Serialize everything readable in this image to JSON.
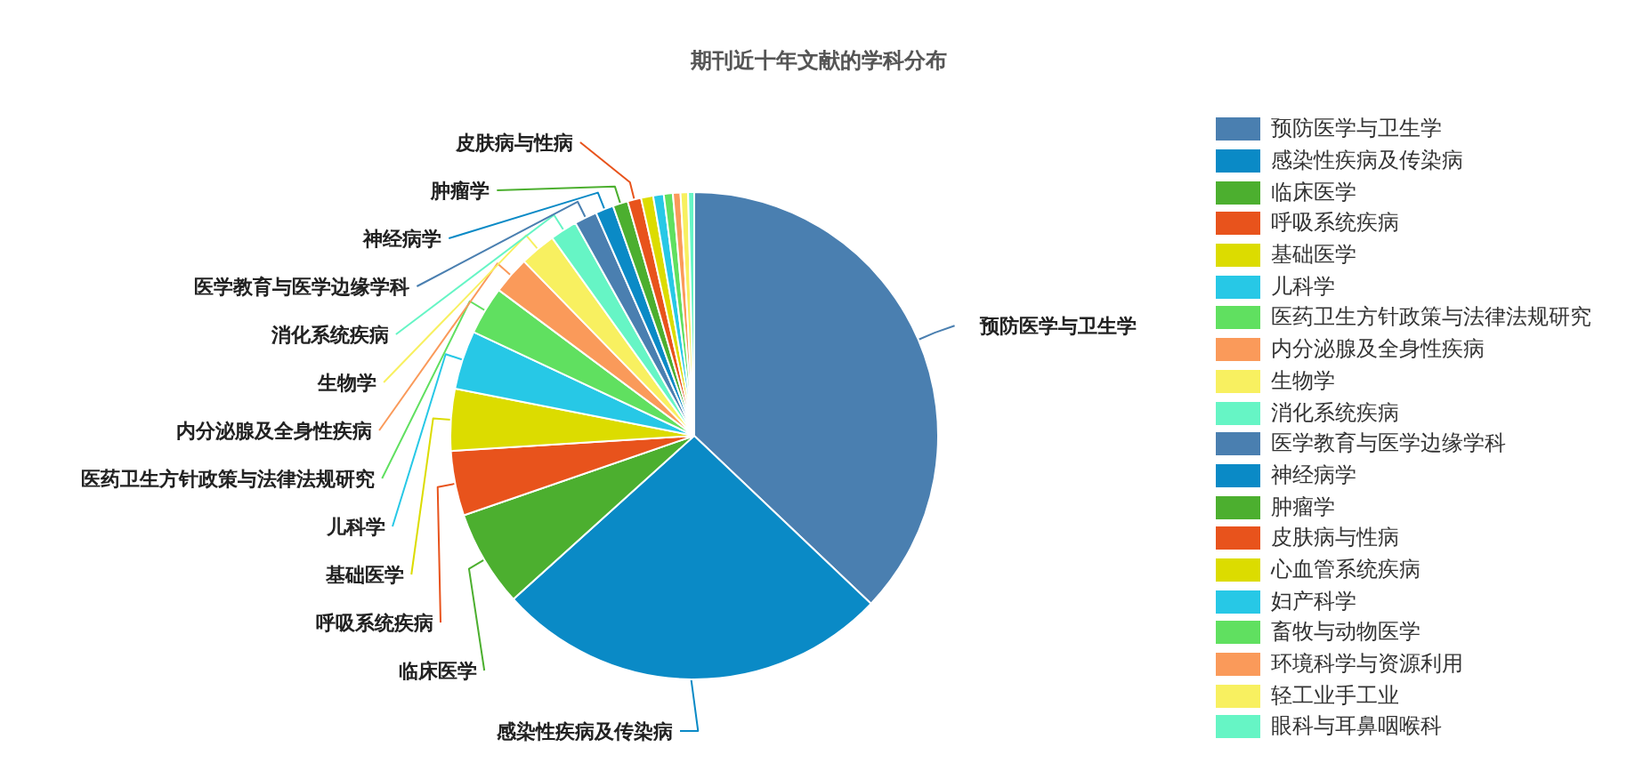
{
  "chart_data": {
    "type": "pie",
    "title": "期刊近十年文献的学科分布",
    "categories": [
      "预防医学与卫生学",
      "感染性疾病及传染病",
      "临床医学",
      "呼吸系统疾病",
      "基础医学",
      "儿科学",
      "医药卫生方针政策与法律法规研究",
      "内分泌腺及全身性疾病",
      "生物学",
      "消化系统疾病",
      "医学教育与医学边缘学科",
      "神经病学",
      "肿瘤学",
      "皮肤病与性病",
      "心血管系统疾病",
      "妇产科学",
      "畜牧与动物医学",
      "环境科学与资源利用",
      "轻工业手工业",
      "眼科与耳鼻咽喉科"
    ],
    "values": [
      37.1,
      26.2,
      6.4,
      4.3,
      4.1,
      3.9,
      3.2,
      2.5,
      2.4,
      1.8,
      1.5,
      1.2,
      1.0,
      0.9,
      0.8,
      0.7,
      0.6,
      0.5,
      0.5,
      0.4
    ],
    "colors": [
      "#4a7fb0",
      "#0a8ac6",
      "#4caf2f",
      "#e8531c",
      "#dcdc00",
      "#27c8e6",
      "#60e060",
      "#fa9a5a",
      "#f8f060",
      "#66f5c5",
      "#4a7fb0",
      "#0a8ac6",
      "#4caf2f",
      "#e8531c",
      "#dcdc00",
      "#27c8e6",
      "#60e060",
      "#fa9a5a",
      "#f8f060",
      "#66f5c5"
    ],
    "legend": "right"
  }
}
